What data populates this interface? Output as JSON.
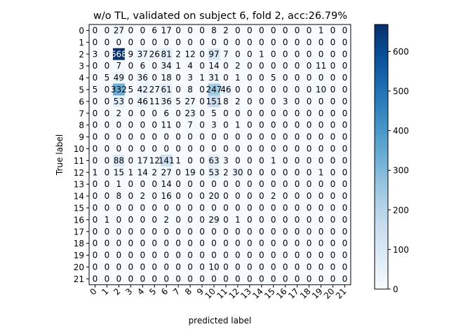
{
  "chart_data": {
    "type": "heatmap",
    "title": "w/o TL, validated on subject 6, fold 2, acc:26.79%",
    "xlabel": "predicted label",
    "ylabel": "True label",
    "labels": [
      "0",
      "1",
      "2",
      "3",
      "4",
      "5",
      "6",
      "7",
      "8",
      "9",
      "10",
      "11",
      "12",
      "13",
      "14",
      "15",
      "16",
      "17",
      "18",
      "19",
      "20",
      "21"
    ],
    "matrix": [
      [
        0,
        0,
        27,
        0,
        0,
        6,
        17,
        0,
        0,
        0,
        8,
        2,
        0,
        0,
        0,
        0,
        0,
        0,
        0,
        1,
        0,
        0
      ],
      [
        0,
        0,
        0,
        0,
        0,
        0,
        0,
        0,
        0,
        0,
        0,
        0,
        0,
        0,
        0,
        0,
        0,
        0,
        0,
        0,
        0,
        0
      ],
      [
        3,
        0,
        668,
        9,
        37,
        26,
        81,
        2,
        12,
        0,
        97,
        7,
        0,
        0,
        1,
        0,
        0,
        0,
        0,
        0,
        0,
        0
      ],
      [
        0,
        0,
        7,
        0,
        6,
        0,
        34,
        1,
        4,
        0,
        14,
        0,
        2,
        0,
        0,
        0,
        0,
        0,
        0,
        11,
        0,
        0
      ],
      [
        0,
        5,
        49,
        0,
        36,
        0,
        18,
        0,
        3,
        1,
        31,
        0,
        1,
        0,
        0,
        5,
        0,
        0,
        0,
        0,
        0,
        0
      ],
      [
        5,
        0,
        332,
        5,
        42,
        27,
        61,
        0,
        8,
        0,
        247,
        46,
        0,
        0,
        0,
        0,
        0,
        0,
        0,
        10,
        0,
        0
      ],
      [
        0,
        0,
        53,
        0,
        46,
        11,
        36,
        5,
        27,
        0,
        151,
        8,
        2,
        0,
        0,
        0,
        3,
        0,
        0,
        0,
        0,
        0
      ],
      [
        0,
        0,
        2,
        0,
        0,
        0,
        6,
        0,
        23,
        0,
        5,
        0,
        0,
        0,
        0,
        0,
        0,
        0,
        0,
        0,
        0,
        0
      ],
      [
        0,
        0,
        0,
        0,
        0,
        0,
        11,
        0,
        7,
        0,
        3,
        0,
        1,
        0,
        0,
        0,
        0,
        0,
        0,
        0,
        0,
        0
      ],
      [
        0,
        0,
        0,
        0,
        0,
        0,
        0,
        0,
        0,
        0,
        0,
        0,
        0,
        0,
        0,
        0,
        0,
        0,
        0,
        0,
        0,
        0
      ],
      [
        0,
        0,
        0,
        0,
        0,
        0,
        0,
        0,
        0,
        0,
        0,
        0,
        0,
        0,
        0,
        0,
        0,
        0,
        0,
        0,
        0,
        0
      ],
      [
        0,
        0,
        88,
        0,
        17,
        12,
        141,
        1,
        0,
        0,
        63,
        3,
        0,
        0,
        0,
        1,
        0,
        0,
        0,
        0,
        0,
        0
      ],
      [
        1,
        0,
        15,
        1,
        14,
        2,
        27,
        0,
        19,
        0,
        53,
        2,
        30,
        0,
        0,
        0,
        0,
        0,
        0,
        1,
        0,
        0
      ],
      [
        0,
        0,
        1,
        0,
        0,
        0,
        14,
        0,
        0,
        0,
        0,
        0,
        0,
        0,
        0,
        0,
        0,
        0,
        0,
        0,
        0,
        0
      ],
      [
        0,
        0,
        8,
        0,
        2,
        0,
        16,
        0,
        0,
        0,
        20,
        0,
        0,
        0,
        0,
        2,
        0,
        0,
        0,
        0,
        0,
        0
      ],
      [
        0,
        0,
        0,
        0,
        0,
        0,
        0,
        0,
        0,
        0,
        0,
        0,
        0,
        0,
        0,
        0,
        0,
        0,
        0,
        0,
        0,
        0
      ],
      [
        0,
        1,
        0,
        0,
        0,
        0,
        2,
        0,
        0,
        0,
        29,
        0,
        1,
        0,
        0,
        0,
        0,
        0,
        0,
        0,
        0,
        0
      ],
      [
        0,
        0,
        0,
        0,
        0,
        0,
        0,
        0,
        0,
        0,
        0,
        0,
        0,
        0,
        0,
        0,
        0,
        0,
        0,
        0,
        0,
        0
      ],
      [
        0,
        0,
        0,
        0,
        0,
        0,
        0,
        0,
        0,
        0,
        0,
        0,
        0,
        0,
        0,
        0,
        0,
        0,
        0,
        0,
        0,
        0
      ],
      [
        0,
        0,
        0,
        0,
        0,
        0,
        0,
        0,
        0,
        0,
        0,
        0,
        0,
        0,
        0,
        0,
        0,
        0,
        0,
        0,
        0,
        0
      ],
      [
        0,
        0,
        0,
        0,
        0,
        0,
        0,
        0,
        0,
        0,
        10,
        0,
        0,
        0,
        0,
        0,
        0,
        0,
        0,
        0,
        0,
        0
      ],
      [
        0,
        0,
        0,
        0,
        0,
        0,
        0,
        0,
        0,
        0,
        0,
        0,
        0,
        0,
        0,
        0,
        0,
        0,
        0,
        0,
        0,
        0
      ]
    ],
    "vmin": 0,
    "vmax": 668,
    "colorbar_ticks": [
      0,
      100,
      200,
      300,
      400,
      500,
      600
    ],
    "colormap": [
      "#f7fbff",
      "#deebf7",
      "#c6dbef",
      "#9ecae1",
      "#6baed6",
      "#4292c6",
      "#2171b5",
      "#08519c",
      "#08306b"
    ]
  }
}
